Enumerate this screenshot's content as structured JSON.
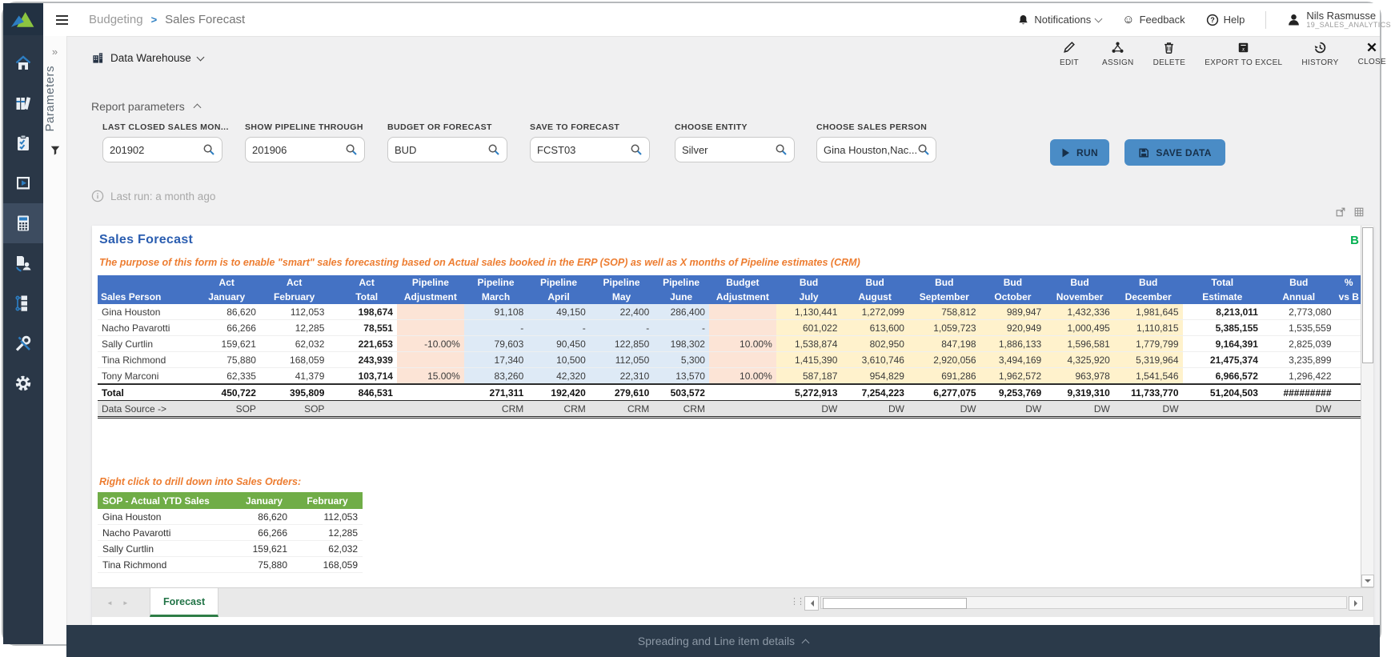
{
  "theme": {
    "accent_blue": "#4472C4",
    "button_blue": "#4A8CC6",
    "header_green": "#70AD47",
    "orange": "#ED7D31",
    "title_blue": "#2A5DB0",
    "corner_green": "#00B050",
    "sidebar_bg": "#2A3747",
    "footer_bg": "#2B3A4A"
  },
  "topbar": {
    "menu_icon": "hamburger-icon",
    "breadcrumb": {
      "parent": "Budgeting",
      "separator": ">",
      "current": "Sales Forecast"
    },
    "notifications_label": "Notifications",
    "feedback_label": "Feedback",
    "help_label": "Help",
    "user": {
      "name": "Nils Rasmusse",
      "workspace": "19_SALES_ANALYTICS"
    }
  },
  "sidebar": {
    "items": [
      {
        "id": "home",
        "icon": "home-icon",
        "active": false
      },
      {
        "id": "library",
        "icon": "library-icon",
        "active": false
      },
      {
        "id": "tasks",
        "icon": "tasks-icon",
        "active": false
      },
      {
        "id": "reports",
        "icon": "reports-icon",
        "active": false
      },
      {
        "id": "budgeting",
        "icon": "budgeting-icon",
        "active": true
      },
      {
        "id": "data-collaboration",
        "icon": "data-collab-icon",
        "active": false
      },
      {
        "id": "workflow",
        "icon": "workflow-icon",
        "active": false
      },
      {
        "id": "tools",
        "icon": "tools-icon",
        "active": false
      },
      {
        "id": "settings",
        "icon": "settings-icon",
        "active": false
      }
    ]
  },
  "params_panel": {
    "collapse_glyph": "»",
    "label": "Parameters",
    "filter_icon": "funnel-icon"
  },
  "context_bar": {
    "source_icon": "building-icon",
    "source_label": "Data Warehouse",
    "toolbar": [
      {
        "icon": "pencil-icon",
        "label": "EDIT"
      },
      {
        "icon": "assign-icon",
        "label": "ASSIGN"
      },
      {
        "icon": "trash-icon",
        "label": "DELETE"
      },
      {
        "icon": "excel-icon",
        "label": "EXPORT TO EXCEL"
      },
      {
        "icon": "history-icon",
        "label": "HISTORY"
      },
      {
        "icon": "close-icon",
        "label": "CLOSE"
      }
    ]
  },
  "report_parameters": {
    "section_label": "Report parameters",
    "fields": [
      {
        "label": "LAST CLOSED SALES MON...",
        "value": "201902"
      },
      {
        "label": "SHOW PIPELINE THROUGH",
        "value": "201906"
      },
      {
        "label": "BUDGET OR FORECAST",
        "value": "BUD"
      },
      {
        "label": "SAVE TO FORECAST",
        "value": "FCST03"
      },
      {
        "label": "CHOOSE ENTITY",
        "value": "Silver"
      },
      {
        "label": "CHOOSE SALES PERSON",
        "value": "Gina Houston,Nac..."
      }
    ],
    "run_label": "RUN",
    "save_label": "SAVE DATA",
    "last_run": "Last run: a month ago"
  },
  "report": {
    "title": "Sales  Forecast",
    "corner_label": "B",
    "description": "The purpose of this form is to enable \"smart\" sales forecasting based on Actual sales booked in the ERP (SOP) as well as X months of Pipeline estimates (CRM)",
    "mini_icons": [
      "popout-icon",
      "grid-icon"
    ],
    "main_table": {
      "header_groups": [
        "",
        "Act",
        "Act",
        "",
        "Act",
        "Pipeline",
        "Pipeline",
        "Pipeline",
        "Pipeline",
        "Pipeline",
        "Budget",
        "Bud",
        "Bud",
        "Bud",
        "Bud",
        "Bud",
        "Bud",
        "Total",
        "Bud",
        "%"
      ],
      "header_labels": [
        "Sales Person",
        "January",
        "February",
        "",
        "Total",
        "Adjustment",
        "March",
        "April",
        "May",
        "June",
        "Adjustment",
        "July",
        "August",
        "September",
        "October",
        "November",
        "December",
        "Estimate",
        "Annual",
        "vs B"
      ],
      "rows": [
        [
          "Gina Houston",
          "86,620",
          "112,053",
          "",
          "198,674",
          "",
          "91,108",
          "49,150",
          "22,400",
          "286,400",
          "",
          "1,130,441",
          "1,272,099",
          "758,812",
          "989,947",
          "1,432,336",
          "1,981,645",
          "8,213,011",
          "2,773,080",
          ""
        ],
        [
          "Nacho Pavarotti",
          "66,266",
          "12,285",
          "",
          "78,551",
          "",
          "-",
          "-",
          "-",
          "-",
          "",
          "601,022",
          "613,600",
          "1,059,723",
          "920,949",
          "1,000,495",
          "1,110,815",
          "5,385,155",
          "1,535,559",
          ""
        ],
        [
          "Sally Curtlin",
          "159,621",
          "62,032",
          "",
          "221,653",
          "-10.00%",
          "79,603",
          "90,450",
          "122,850",
          "198,302",
          "10.00%",
          "1,538,874",
          "802,950",
          "847,198",
          "1,886,133",
          "1,596,581",
          "1,779,799",
          "9,164,391",
          "2,825,039",
          ""
        ],
        [
          "Tina Richmond",
          "75,880",
          "168,059",
          "",
          "243,939",
          "",
          "17,340",
          "10,500",
          "112,050",
          "5,300",
          "",
          "1,415,390",
          "3,610,746",
          "2,920,056",
          "3,494,169",
          "4,325,920",
          "5,319,964",
          "21,475,374",
          "3,235,899",
          ""
        ],
        [
          "Tony Marconi",
          "62,335",
          "41,379",
          "",
          "103,714",
          "15.00%",
          "83,260",
          "42,320",
          "22,310",
          "13,570",
          "10.00%",
          "587,187",
          "954,829",
          "691,286",
          "1,962,572",
          "963,978",
          "1,541,546",
          "6,966,572",
          "1,296,422",
          ""
        ]
      ],
      "total_row": [
        "Total",
        "450,722",
        "395,809",
        "",
        "846,531",
        "",
        "271,311",
        "192,420",
        "279,610",
        "503,572",
        "",
        "5,272,913",
        "7,254,223",
        "6,277,075",
        "9,253,769",
        "9,319,310",
        "11,733,770",
        "51,204,503",
        "#########",
        ""
      ],
      "source_row": [
        "Data Source ->",
        "SOP",
        "SOP",
        "",
        "",
        "",
        "CRM",
        "CRM",
        "CRM",
        "CRM",
        "",
        "DW",
        "DW",
        "DW",
        "DW",
        "DW",
        "DW",
        "",
        "DW",
        ""
      ]
    },
    "drill_hint": "Right click to drill down into Sales Orders:",
    "drill_table": {
      "headers": [
        "SOP - Actual YTD Sales",
        "January",
        "February"
      ],
      "rows": [
        [
          "Gina Houston",
          "86,620",
          "112,053"
        ],
        [
          "Nacho Pavarotti",
          "66,266",
          "12,285"
        ],
        [
          "Sally Curtlin",
          "159,621",
          "62,032"
        ],
        [
          "Tina Richmond",
          "75,880",
          "168,059"
        ]
      ]
    },
    "sheet_tab": "Forecast",
    "sheet_nav_prev": "◄",
    "sheet_nav_next": "►"
  },
  "footer_bar": {
    "label": "Spreading and Line item details"
  }
}
